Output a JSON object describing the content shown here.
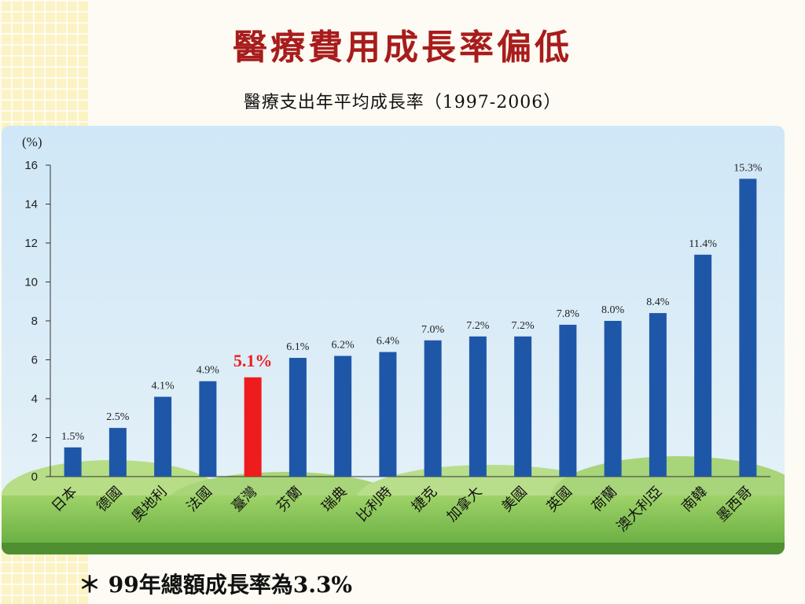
{
  "page": {
    "title": "醫療費用成長率偏低",
    "subtitle": "醫療支出年平均成長率（1997-2006）",
    "footnote": "＊ 99年總額成長率為3.3%"
  },
  "chart_data": {
    "type": "bar",
    "ylabel": "(%)",
    "ylim": [
      0,
      16
    ],
    "yticks": [
      0,
      2,
      4,
      6,
      8,
      10,
      12,
      14,
      16
    ],
    "grid": false,
    "categories": [
      "日本",
      "德國",
      "奧地利",
      "法國",
      "臺灣",
      "芬蘭",
      "瑞典",
      "比利時",
      "捷克",
      "加拿大",
      "美國",
      "英國",
      "荷蘭",
      "澳大利亞",
      "南韓",
      "墨西哥"
    ],
    "values": [
      1.5,
      2.5,
      4.1,
      4.9,
      5.1,
      6.1,
      6.2,
      6.4,
      7.0,
      7.2,
      7.2,
      7.8,
      8.0,
      8.4,
      11.4,
      15.3
    ],
    "data_labels": [
      "1.5%",
      "2.5%",
      "4.1%",
      "4.9%",
      "5.1%",
      "6.1%",
      "6.2%",
      "6.4%",
      "7.0%",
      "7.2%",
      "7.2%",
      "7.8%",
      "8.0%",
      "8.4%",
      "11.4%",
      "15.3%"
    ],
    "highlight_index": 4,
    "colors": {
      "bar": "#1f57a8",
      "highlight": "#ee1c1c",
      "axis": "#333333",
      "text": "#222222"
    }
  }
}
